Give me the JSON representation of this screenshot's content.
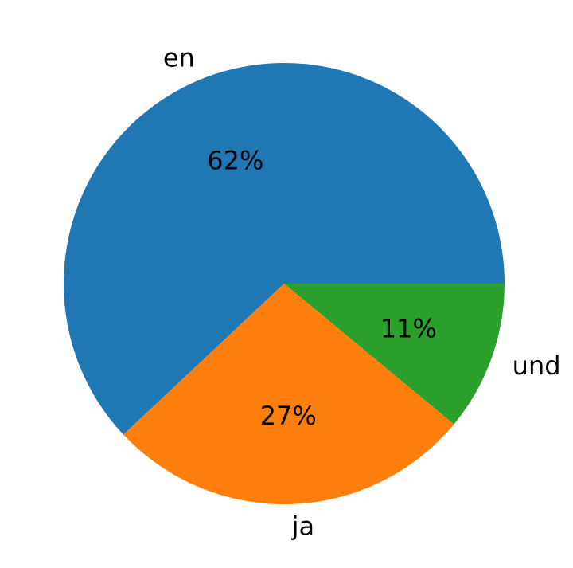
{
  "chart_data": {
    "type": "pie",
    "title": "",
    "categories": [
      "en",
      "ja",
      "und"
    ],
    "values": [
      62,
      27,
      11
    ],
    "value_labels": [
      "62%",
      "27%",
      "11%"
    ],
    "colors": [
      "#1f77b4",
      "#ff7f0e",
      "#2ca02c"
    ],
    "start_angle_deg": 0,
    "direction": "clockwise"
  }
}
